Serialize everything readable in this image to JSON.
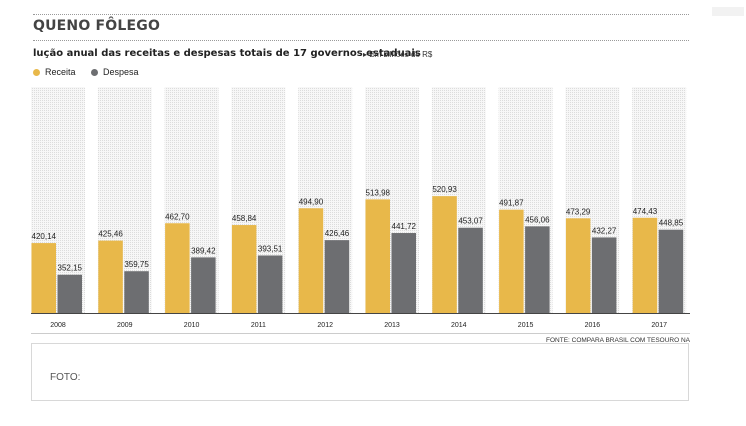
{
  "header": {
    "title": "QUENO FÔLEGO",
    "subtitle": "lução anual das receitas e despesas totais de 17 governos estaduais",
    "unit_note": "▸ Em bilhões de R$"
  },
  "legend": {
    "receita_label": "Receita",
    "despesa_label": "Despesa"
  },
  "colors": {
    "receita": "#e8b84a",
    "despesa": "#6d6e71",
    "column_bg": "#ececec"
  },
  "chart_data": {
    "type": "bar",
    "categories": [
      "2008",
      "2009",
      "2010",
      "2011",
      "2012",
      "2013",
      "2014",
      "2015",
      "2016",
      "2017"
    ],
    "series": [
      {
        "name": "Receita",
        "values": [
          420.14,
          425.46,
          462.7,
          458.84,
          494.9,
          513.98,
          520.93,
          491.87,
          473.29,
          474.43
        ],
        "labels": [
          "420,14",
          "425,46",
          "462,70",
          "458,84",
          "494,90",
          "513,98",
          "520,93",
          "491,87",
          "473,29",
          "474,43"
        ]
      },
      {
        "name": "Despesa",
        "values": [
          352.15,
          359.75,
          389.42,
          393.51,
          426.46,
          441.72,
          453.07,
          456.06,
          432.27,
          448.85
        ],
        "labels": [
          "352,15",
          "359,75",
          "389,42",
          "393,51",
          "426,46",
          "441,72",
          "453,07",
          "456,06",
          "432,27",
          "448,85"
        ]
      }
    ]
  },
  "source": "FONTE: COMPARA BRASIL COM TESOURO NACI",
  "foto_label": "FOTO:"
}
